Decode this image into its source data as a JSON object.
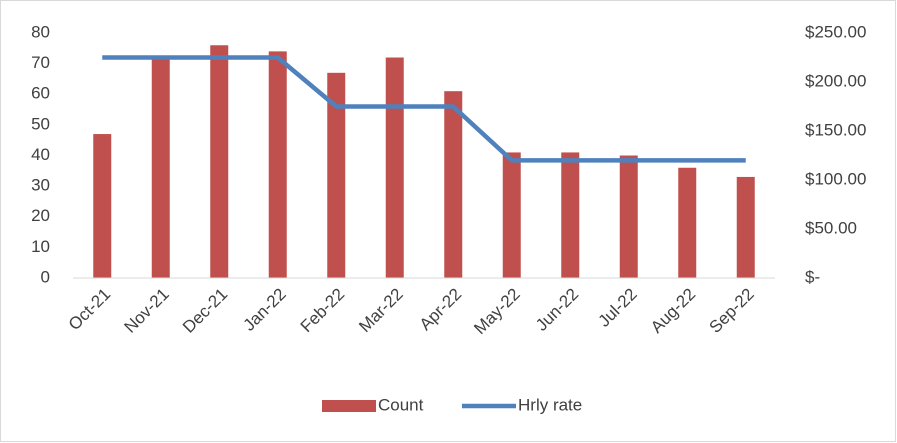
{
  "chart_data": {
    "type": "bar_line",
    "categories": [
      "Oct-21",
      "Nov-21",
      "Dec-21",
      "Jan-22",
      "Feb-22",
      "Mar-22",
      "Apr-22",
      "May-22",
      "Jun-22",
      "Jul-22",
      "Aug-22",
      "Sep-22"
    ],
    "series": [
      {
        "name": "Count",
        "type": "bar",
        "color": "#c0504d",
        "values": [
          47,
          72,
          76,
          74,
          67,
          72,
          61,
          41,
          41,
          40,
          36,
          33
        ]
      },
      {
        "name": "Hrly rate",
        "type": "line",
        "axis": "y2",
        "color": "#4f81bd",
        "values": [
          225,
          225,
          225,
          225,
          175,
          175,
          175,
          120,
          120,
          120,
          120,
          120
        ]
      }
    ],
    "ylim": [
      0,
      80
    ],
    "yticks": [
      0,
      10,
      20,
      30,
      40,
      50,
      60,
      70,
      80
    ],
    "y2lim": [
      0,
      250
    ],
    "y2ticks": [
      {
        "value": 0,
        "label": "$-"
      },
      {
        "value": 50,
        "label": "$50.00"
      },
      {
        "value": 100,
        "label": "$100.00"
      },
      {
        "value": 150,
        "label": "$150.00"
      },
      {
        "value": 200,
        "label": "$200.00"
      },
      {
        "value": 250,
        "label": "$250.00"
      }
    ],
    "grid": false,
    "legend": "bottom"
  }
}
